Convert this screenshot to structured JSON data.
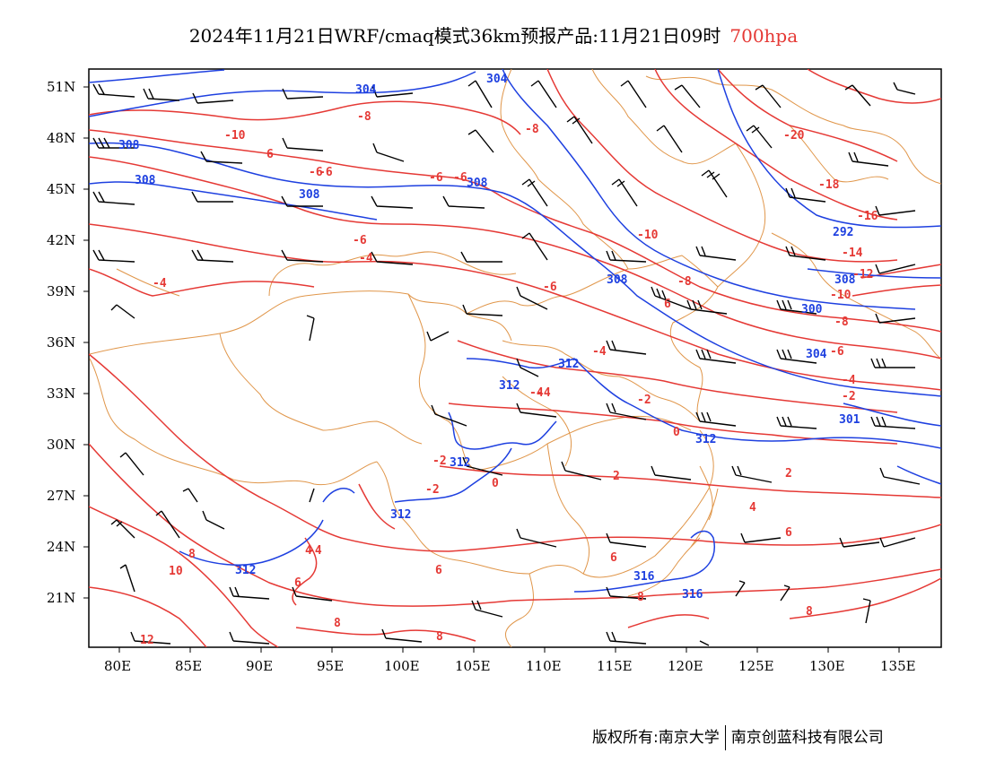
{
  "title": {
    "main": "2024年11月21日WRF/cmaq模式36km预报产品:11月21日09时",
    "level": "700hpa"
  },
  "colors": {
    "temperature": "#e53935",
    "geopotential": "#1e40e0",
    "borders": "#e0964a",
    "wind": "#000000"
  },
  "axes": {
    "lat_labels": [
      "51N",
      "48N",
      "45N",
      "42N",
      "39N",
      "36N",
      "33N",
      "30N",
      "27N",
      "24N",
      "21N"
    ],
    "lon_labels": [
      "80E",
      "85E",
      "90E",
      "95E",
      "100E",
      "105E",
      "110E",
      "115E",
      "120E",
      "125E",
      "130E",
      "135E"
    ]
  },
  "temperature_labels": [
    "-8",
    "-10",
    "-6",
    "-8",
    "-6",
    "-6",
    "-4",
    "-4",
    "-6",
    "-10",
    "-20",
    "-18",
    "-16",
    "-14",
    "-12",
    "-10",
    "-8",
    "-6",
    "-8",
    "-6",
    "-4",
    "-4",
    "-2",
    "-2",
    "-2",
    "0",
    "-2",
    "0",
    "2",
    "2",
    "-4",
    "4",
    "4",
    "6",
    "6",
    "6",
    "8",
    "6",
    "10",
    "8",
    "8",
    "8",
    "12",
    "6",
    "8",
    "-6",
    "-4",
    "-4",
    "6"
  ],
  "height_labels": [
    "304",
    "304",
    "308",
    "308",
    "308",
    "308",
    "308",
    "292",
    "300",
    "304",
    "312",
    "312",
    "312",
    "312",
    "301",
    "312",
    "316",
    "316",
    "312",
    "308"
  ],
  "footer": {
    "left": "版权所有:南京大学",
    "right": "南京创蓝科技有限公司"
  }
}
